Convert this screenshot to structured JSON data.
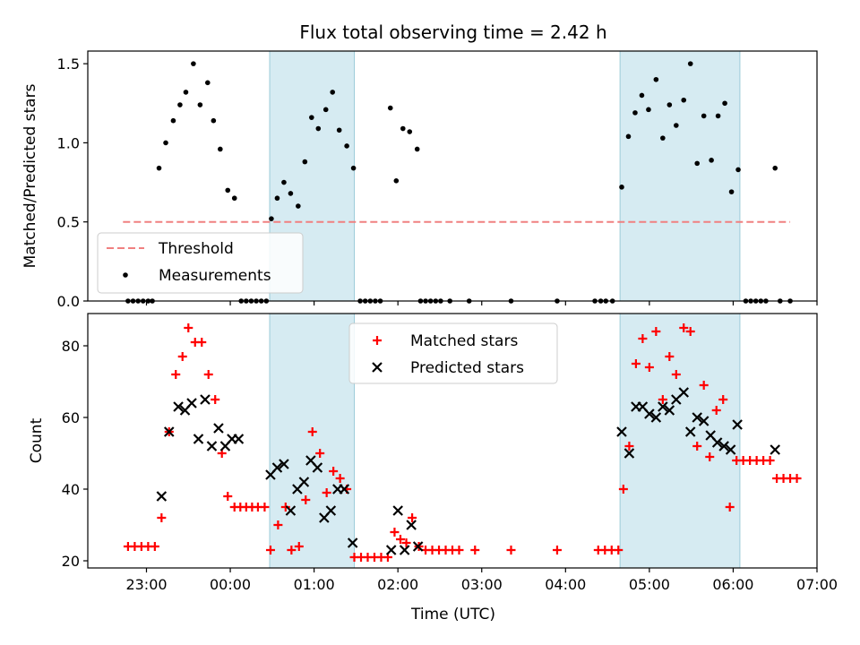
{
  "title": "Flux total observing time = 2.42 h",
  "xlabel": "Time (UTC)",
  "xticks": [
    {
      "h": 23,
      "label": "23:00"
    },
    {
      "h": 24,
      "label": "00:00"
    },
    {
      "h": 25,
      "label": "01:00"
    },
    {
      "h": 26,
      "label": "02:00"
    },
    {
      "h": 27,
      "label": "03:00"
    },
    {
      "h": 28,
      "label": "04:00"
    },
    {
      "h": 29,
      "label": "05:00"
    },
    {
      "h": 30,
      "label": "06:00"
    },
    {
      "h": 31,
      "label": "07:00"
    }
  ],
  "chart_data": [
    {
      "type": "scatter",
      "panel": "top",
      "xlabel": "",
      "ylabel": "Matched/Predicted stars",
      "xlim": [
        22.3,
        31.0
      ],
      "ylim": [
        0,
        1.58
      ],
      "yticks": [
        0.0,
        0.5,
        1.0,
        1.5
      ],
      "ytick_labels": [
        "0.0",
        "0.5",
        "1.0",
        "1.5"
      ],
      "x_unit": "hours since 00:00 UTC of the first night",
      "shaded_regions": [
        [
          24.47,
          25.48
        ],
        [
          28.65,
          30.08
        ]
      ],
      "threshold": {
        "name": "Threshold",
        "y": 0.5,
        "x_range": [
          22.72,
          30.68
        ],
        "color": "#f08080"
      },
      "legend": {
        "position": "lower-left",
        "entries": [
          "Threshold",
          "Measurements"
        ]
      },
      "series": [
        {
          "name": "Measurements",
          "color": "#000000",
          "points": [
            [
              22.78,
              0
            ],
            [
              22.84,
              0
            ],
            [
              22.9,
              0
            ],
            [
              22.96,
              0
            ],
            [
              23.02,
              0
            ],
            [
              23.07,
              0
            ],
            [
              23.15,
              0.84
            ],
            [
              23.23,
              1.0
            ],
            [
              23.32,
              1.14
            ],
            [
              23.4,
              1.24
            ],
            [
              23.47,
              1.32
            ],
            [
              23.56,
              1.5
            ],
            [
              23.64,
              1.24
            ],
            [
              23.73,
              1.38
            ],
            [
              23.8,
              1.14
            ],
            [
              23.88,
              0.96
            ],
            [
              23.97,
              0.7
            ],
            [
              24.05,
              0.65
            ],
            [
              24.13,
              0
            ],
            [
              24.19,
              0
            ],
            [
              24.25,
              0
            ],
            [
              24.31,
              0
            ],
            [
              24.37,
              0
            ],
            [
              24.43,
              0
            ],
            [
              24.49,
              0.52
            ],
            [
              24.56,
              0.65
            ],
            [
              24.64,
              0.75
            ],
            [
              24.72,
              0.68
            ],
            [
              24.81,
              0.6
            ],
            [
              24.89,
              0.88
            ],
            [
              24.97,
              1.16
            ],
            [
              25.05,
              1.09
            ],
            [
              25.14,
              1.21
            ],
            [
              25.22,
              1.32
            ],
            [
              25.3,
              1.08
            ],
            [
              25.39,
              0.98
            ],
            [
              25.47,
              0.84
            ],
            [
              25.55,
              0
            ],
            [
              25.61,
              0
            ],
            [
              25.67,
              0
            ],
            [
              25.73,
              0
            ],
            [
              25.79,
              0
            ],
            [
              25.91,
              1.22
            ],
            [
              25.98,
              0.76
            ],
            [
              26.06,
              1.09
            ],
            [
              26.14,
              1.07
            ],
            [
              26.23,
              0.96
            ],
            [
              26.27,
              0
            ],
            [
              26.33,
              0
            ],
            [
              26.39,
              0
            ],
            [
              26.45,
              0
            ],
            [
              26.51,
              0
            ],
            [
              26.62,
              0
            ],
            [
              26.85,
              0
            ],
            [
              27.35,
              0
            ],
            [
              27.9,
              0
            ],
            [
              28.35,
              0
            ],
            [
              28.42,
              0
            ],
            [
              28.48,
              0
            ],
            [
              28.56,
              0
            ],
            [
              28.67,
              0.72
            ],
            [
              28.75,
              1.04
            ],
            [
              28.83,
              1.19
            ],
            [
              28.91,
              1.3
            ],
            [
              28.99,
              1.21
            ],
            [
              29.08,
              1.4
            ],
            [
              29.16,
              1.03
            ],
            [
              29.24,
              1.24
            ],
            [
              29.32,
              1.11
            ],
            [
              29.41,
              1.27
            ],
            [
              29.49,
              1.5
            ],
            [
              29.57,
              0.87
            ],
            [
              29.65,
              1.17
            ],
            [
              29.74,
              0.89
            ],
            [
              29.82,
              1.17
            ],
            [
              29.9,
              1.25
            ],
            [
              29.98,
              0.69
            ],
            [
              30.06,
              0.83
            ],
            [
              30.15,
              0
            ],
            [
              30.21,
              0
            ],
            [
              30.27,
              0
            ],
            [
              30.33,
              0
            ],
            [
              30.39,
              0
            ],
            [
              30.5,
              0.84
            ],
            [
              30.56,
              0
            ],
            [
              30.68,
              0
            ]
          ]
        }
      ]
    },
    {
      "type": "scatter",
      "panel": "bottom",
      "xlabel": "Time (UTC)",
      "ylabel": "Count",
      "xlim": [
        22.3,
        31.0
      ],
      "ylim": [
        18,
        89
      ],
      "yticks": [
        20,
        40,
        60,
        80
      ],
      "ytick_labels": [
        "20",
        "40",
        "60",
        "80"
      ],
      "x_unit": "hours since 00:00 UTC of the first night",
      "shaded_regions": [
        [
          24.47,
          25.48
        ],
        [
          28.65,
          30.08
        ]
      ],
      "legend": {
        "position": "upper-center",
        "entries": [
          "Matched stars",
          "Predicted stars"
        ]
      },
      "series": [
        {
          "name": "Matched stars",
          "marker": "plus",
          "color": "#ff0000",
          "points": [
            [
              22.78,
              24
            ],
            [
              22.86,
              24
            ],
            [
              22.94,
              24
            ],
            [
              23.02,
              24
            ],
            [
              23.1,
              24
            ],
            [
              23.18,
              32
            ],
            [
              23.27,
              56
            ],
            [
              23.35,
              72
            ],
            [
              23.43,
              77
            ],
            [
              23.5,
              85
            ],
            [
              23.58,
              81
            ],
            [
              23.66,
              81
            ],
            [
              23.74,
              72
            ],
            [
              23.82,
              65
            ],
            [
              23.9,
              50
            ],
            [
              23.97,
              38
            ],
            [
              24.05,
              35
            ],
            [
              24.12,
              35
            ],
            [
              24.19,
              35
            ],
            [
              24.26,
              35
            ],
            [
              24.33,
              35
            ],
            [
              24.41,
              35
            ],
            [
              24.48,
              23
            ],
            [
              24.57,
              30
            ],
            [
              24.66,
              35
            ],
            [
              24.73,
              23
            ],
            [
              24.82,
              24
            ],
            [
              24.9,
              37
            ],
            [
              24.98,
              56
            ],
            [
              25.07,
              50
            ],
            [
              25.15,
              39
            ],
            [
              25.23,
              45
            ],
            [
              25.31,
              43
            ],
            [
              25.39,
              40
            ],
            [
              25.48,
              21
            ],
            [
              25.56,
              21
            ],
            [
              25.64,
              21
            ],
            [
              25.72,
              21
            ],
            [
              25.8,
              21
            ],
            [
              25.88,
              21
            ],
            [
              25.96,
              28
            ],
            [
              26.03,
              26
            ],
            [
              26.1,
              25
            ],
            [
              26.17,
              32
            ],
            [
              26.25,
              24
            ],
            [
              26.33,
              23
            ],
            [
              26.41,
              23
            ],
            [
              26.49,
              23
            ],
            [
              26.57,
              23
            ],
            [
              26.65,
              23
            ],
            [
              26.73,
              23
            ],
            [
              26.92,
              23
            ],
            [
              27.35,
              23
            ],
            [
              27.9,
              23
            ],
            [
              28.39,
              23
            ],
            [
              28.47,
              23
            ],
            [
              28.55,
              23
            ],
            [
              28.63,
              23
            ],
            [
              28.69,
              40
            ],
            [
              28.76,
              52
            ],
            [
              28.84,
              75
            ],
            [
              28.92,
              82
            ],
            [
              29.0,
              74
            ],
            [
              29.08,
              84
            ],
            [
              29.16,
              65
            ],
            [
              29.24,
              77
            ],
            [
              29.32,
              72
            ],
            [
              29.41,
              85
            ],
            [
              29.49,
              84
            ],
            [
              29.57,
              52
            ],
            [
              29.65,
              69
            ],
            [
              29.72,
              49
            ],
            [
              29.8,
              62
            ],
            [
              29.88,
              65
            ],
            [
              29.96,
              35
            ],
            [
              30.04,
              48
            ],
            [
              30.12,
              48
            ],
            [
              30.2,
              48
            ],
            [
              30.28,
              48
            ],
            [
              30.36,
              48
            ],
            [
              30.44,
              48
            ],
            [
              30.52,
              43
            ],
            [
              30.6,
              43
            ],
            [
              30.68,
              43
            ],
            [
              30.76,
              43
            ]
          ]
        },
        {
          "name": "Predicted stars",
          "marker": "x",
          "color": "#000000",
          "points": [
            [
              23.18,
              38
            ],
            [
              23.27,
              56
            ],
            [
              23.38,
              63
            ],
            [
              23.46,
              62
            ],
            [
              23.54,
              64
            ],
            [
              23.62,
              54
            ],
            [
              23.7,
              65
            ],
            [
              23.78,
              52
            ],
            [
              23.86,
              57
            ],
            [
              23.94,
              52
            ],
            [
              24.02,
              54
            ],
            [
              24.1,
              54
            ],
            [
              24.48,
              44
            ],
            [
              24.56,
              46
            ],
            [
              24.64,
              47
            ],
            [
              24.72,
              34
            ],
            [
              24.8,
              40
            ],
            [
              24.88,
              42
            ],
            [
              24.96,
              48
            ],
            [
              25.04,
              46
            ],
            [
              25.12,
              32
            ],
            [
              25.2,
              34
            ],
            [
              25.28,
              40
            ],
            [
              25.36,
              40
            ],
            [
              25.46,
              25
            ],
            [
              25.92,
              23
            ],
            [
              26.0,
              34
            ],
            [
              26.08,
              23
            ],
            [
              26.16,
              30
            ],
            [
              26.24,
              24
            ],
            [
              28.67,
              56
            ],
            [
              28.76,
              50
            ],
            [
              28.84,
              63
            ],
            [
              28.92,
              63
            ],
            [
              29.0,
              61
            ],
            [
              29.08,
              60
            ],
            [
              29.16,
              63
            ],
            [
              29.24,
              62
            ],
            [
              29.32,
              65
            ],
            [
              29.41,
              67
            ],
            [
              29.49,
              56
            ],
            [
              29.57,
              60
            ],
            [
              29.65,
              59
            ],
            [
              29.73,
              55
            ],
            [
              29.81,
              53
            ],
            [
              29.89,
              52
            ],
            [
              29.97,
              51
            ],
            [
              30.05,
              58
            ],
            [
              30.5,
              51
            ]
          ]
        }
      ]
    }
  ]
}
